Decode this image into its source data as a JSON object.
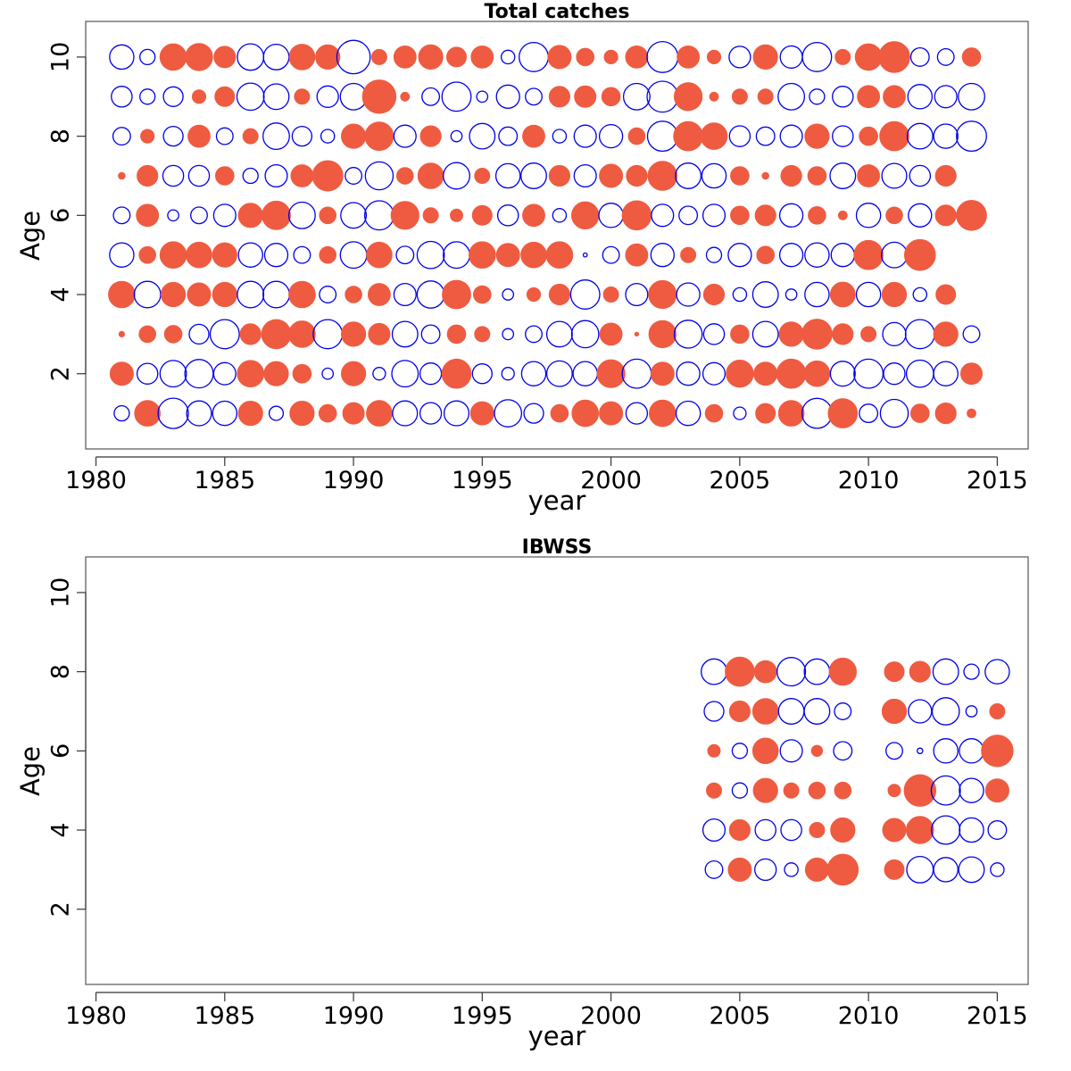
{
  "colors": {
    "positive": "#ef5b40",
    "negative": "#0000e8"
  },
  "chart_data": [
    {
      "type": "scatter",
      "subtype": "bubble",
      "title": "Total catches",
      "xlabel": "year",
      "ylabel": "Age",
      "xlim": [
        1979.6,
        2016.2
      ],
      "ylim": [
        0.1,
        10.9
      ],
      "xticks": [
        1980,
        1985,
        1990,
        1995,
        2000,
        2005,
        2010,
        2015
      ],
      "xtick_labels": [
        "1980",
        "1985",
        "1990",
        "1995",
        "2000",
        "2005",
        "2010",
        "2015"
      ],
      "yticks": [
        2,
        4,
        6,
        8,
        10
      ],
      "ytick_labels": [
        "2",
        "4",
        "6",
        "8",
        "10"
      ],
      "size_unit": "relative residual magnitude (1 = largest bubble)",
      "sign_legend": {
        "positive": "filled",
        "negative": "open"
      },
      "start_year": 1981,
      "ages": [
        1,
        2,
        3,
        4,
        5,
        6,
        7,
        8,
        9,
        10
      ],
      "rows": [
        [
          "-0.15",
          "0.42",
          "-0.6",
          "-0.4",
          "-0.38",
          "0.38",
          "-0.13",
          "0.38",
          "0.2",
          "0.3",
          "0.42",
          "-0.4",
          "-0.3",
          "-0.4",
          "0.35",
          "-0.48",
          "-0.25",
          "0.2",
          "0.45",
          "0.35",
          "-0.3",
          "0.45",
          "-0.38",
          "0.2",
          "-0.1",
          "0.25",
          "0.42",
          "-0.58",
          "0.55",
          "-0.22",
          "-0.5",
          "0.22",
          "0.28",
          "0.05"
        ],
        [
          "0.35",
          "-0.28",
          "-0.45",
          "-0.52",
          "-0.32",
          "0.45",
          "0.38",
          "0.22",
          "-0.08",
          "0.38",
          "-0.1",
          "-0.45",
          "-0.3",
          "0.55",
          "-0.25",
          "-0.1",
          "-0.38",
          "-0.42",
          "-0.38",
          "0.5",
          "-0.55",
          "0.35",
          "-0.35",
          "-0.32",
          "0.48",
          "0.35",
          "0.55",
          "0.42",
          "-0.4",
          "-0.55",
          "-0.3",
          "-0.48",
          "-0.38",
          "0.3"
        ],
        [
          "0.02",
          "0.18",
          "0.2",
          "-0.25",
          "-0.55",
          "0.28",
          "0.55",
          "0.45",
          "-0.55",
          "0.38",
          "0.3",
          "-0.42",
          "-0.22",
          "0.22",
          "0.15",
          "-0.08",
          "-0.18",
          "-0.42",
          "-0.48",
          "0.32",
          "0.01",
          "0.48",
          "-0.5",
          "-0.28",
          "0.22",
          "-0.42",
          "0.38",
          "0.58",
          "0.28",
          "0.15",
          "-0.35",
          "-0.55",
          "0.38",
          "-0.18"
        ],
        [
          "0.45",
          "-0.45",
          "0.38",
          "0.35",
          "0.38",
          "-0.45",
          "-0.45",
          "0.45",
          "-0.18",
          "0.18",
          "0.32",
          "-0.32",
          "-0.48",
          "0.52",
          "0.2",
          "-0.08",
          "0.12",
          "0.28",
          "-0.55",
          "0.15",
          "-0.32",
          "0.5",
          "-0.35",
          "0.28",
          "-0.12",
          "-0.42",
          "-0.08",
          "-0.38",
          "0.4",
          "-0.38",
          "0.38",
          "-0.12",
          "0.25"
        ],
        [
          "-0.38",
          "0.18",
          "0.45",
          "0.42",
          "0.38",
          "-0.38",
          "-0.35",
          "-0.18",
          "0.18",
          "-0.45",
          "0.42",
          "-0.2",
          "-0.48",
          "-0.45",
          "0.45",
          "0.35",
          "0.42",
          "0.45",
          "-0.01",
          "-0.18",
          "0.32",
          "-0.35",
          "0.15",
          "-0.15",
          "-0.35",
          "0.2",
          "-0.35",
          "-0.38",
          "-0.35",
          "0.55",
          "-0.42",
          "0.62"
        ],
        [
          "-0.18",
          "0.32",
          "-0.08",
          "-0.18",
          "-0.32",
          "0.38",
          "0.52",
          "-0.45",
          "0.18",
          "-0.42",
          "-0.55",
          "0.5",
          "0.15",
          "0.1",
          "0.25",
          "-0.28",
          "0.32",
          "-0.12",
          "0.48",
          "-0.38",
          "0.55",
          "-0.32",
          "-0.22",
          "-0.32",
          "0.22",
          "0.28",
          "-0.35",
          "0.2",
          "0.05",
          "-0.38",
          "0.18",
          "-0.35",
          "0.28",
          "0.58"
        ],
        [
          "0.03",
          "0.28",
          "-0.28",
          "-0.28",
          "0.22",
          "-0.15",
          "-0.32",
          "0.32",
          "0.6",
          "-0.18",
          "-0.5",
          "0.18",
          "0.42",
          "-0.45",
          "0.15",
          "-0.38",
          "-0.42",
          "0.28",
          "-0.32",
          "0.35",
          "0.28",
          "0.55",
          "-0.42",
          "-0.38",
          "0.22",
          "0.03",
          "0.28",
          "0.22",
          "-0.42",
          "0.32",
          "-0.4",
          "-0.28",
          "0.28"
        ],
        [
          "-0.2",
          "0.12",
          "-0.25",
          "0.32",
          "-0.18",
          "0.15",
          "-0.45",
          "-0.25",
          "-0.12",
          "0.38",
          "0.52",
          "-0.32",
          "0.28",
          "-0.08",
          "-0.42",
          "-0.22",
          "0.32",
          "-0.12",
          "-0.32",
          "-0.35",
          "0.18",
          "-0.58",
          "0.55",
          "0.45",
          "-0.28",
          "-0.22",
          "-0.32",
          "0.38",
          "-0.28",
          "0.22",
          "0.55",
          "-0.42",
          "-0.38",
          "-0.58"
        ],
        [
          "-0.28",
          "-0.15",
          "-0.25",
          "0.12",
          "0.25",
          "-0.48",
          "-0.42",
          "0.15",
          "-0.3",
          "-0.45",
          "0.72",
          "0.05",
          "-0.2",
          "-0.55",
          "-0.08",
          "-0.35",
          "-0.18",
          "0.28",
          "0.3",
          "0.22",
          "-0.45",
          "-0.62",
          "0.5",
          "0.05",
          "0.15",
          "0.15",
          "-0.45",
          "-0.15",
          "-0.28",
          "0.32",
          "0.32",
          "-0.38",
          "-0.32",
          "-0.45"
        ],
        [
          "-0.38",
          "-0.15",
          "0.45",
          "0.48",
          "0.3",
          "-0.45",
          "-0.42",
          "0.42",
          "0.38",
          "-0.72",
          "0.15",
          "0.32",
          "0.38",
          "0.25",
          "0.32",
          "-0.12",
          "-0.55",
          "0.35",
          "0.2",
          "0.12",
          "0.32",
          "-0.62",
          "0.32",
          "0.12",
          "-0.3",
          "0.38",
          "-0.32",
          "-0.55",
          "0.15",
          "0.45",
          "0.62",
          "-0.22",
          "-0.18",
          "0.22"
        ]
      ]
    },
    {
      "type": "scatter",
      "subtype": "bubble",
      "title": "IBWSS",
      "xlabel": "year",
      "ylabel": "Age",
      "xlim": [
        1979.6,
        2016.2
      ],
      "ylim": [
        0.1,
        10.9
      ],
      "xticks": [
        1980,
        1985,
        1990,
        1995,
        2000,
        2005,
        2010,
        2015
      ],
      "xtick_labels": [
        "1980",
        "1985",
        "1990",
        "1995",
        "2000",
        "2005",
        "2010",
        "2015"
      ],
      "yticks": [
        2,
        4,
        6,
        8,
        10
      ],
      "ytick_labels": [
        "2",
        "4",
        "6",
        "8",
        "10"
      ],
      "size_unit": "relative residual magnitude (1 = largest bubble)",
      "sign_legend": {
        "positive": "filled",
        "negative": "open"
      },
      "years": [
        2004,
        2005,
        2006,
        2007,
        2008,
        2009,
        2011,
        2012,
        2013,
        2014,
        2015
      ],
      "ages": [
        3,
        4,
        5,
        6,
        7,
        8
      ],
      "rows": [
        [
          "-0.2",
          "0.35",
          "-0.3",
          "-0.12",
          "0.35",
          "0.62",
          "0.25",
          "-0.45",
          "-0.38",
          "-0.42",
          "-0.12"
        ],
        [
          "-0.32",
          "0.28",
          "-0.28",
          "-0.28",
          "0.15",
          "0.38",
          "0.35",
          "0.48",
          "-0.52",
          "-0.38",
          "-0.22"
        ],
        [
          "0.15",
          "-0.15",
          "0.38",
          "0.15",
          "0.18",
          "0.18",
          "0.1",
          "0.65",
          "-0.55",
          "-0.38",
          "0.35"
        ],
        [
          "0.1",
          "-0.15",
          "0.42",
          "-0.32",
          "0.08",
          "-0.22",
          "-0.18",
          "-0.02",
          "-0.38",
          "-0.38",
          "0.65"
        ],
        [
          "-0.25",
          "0.28",
          "0.42",
          "-0.42",
          "-0.42",
          "-0.18",
          "0.38",
          "-0.35",
          "-0.48",
          "-0.08",
          "0.15"
        ],
        [
          "-0.42",
          "0.55",
          "0.32",
          "-0.52",
          "-0.42",
          "0.48",
          "0.25",
          "0.28",
          "-0.42",
          "-0.15",
          "-0.38"
        ]
      ]
    }
  ]
}
